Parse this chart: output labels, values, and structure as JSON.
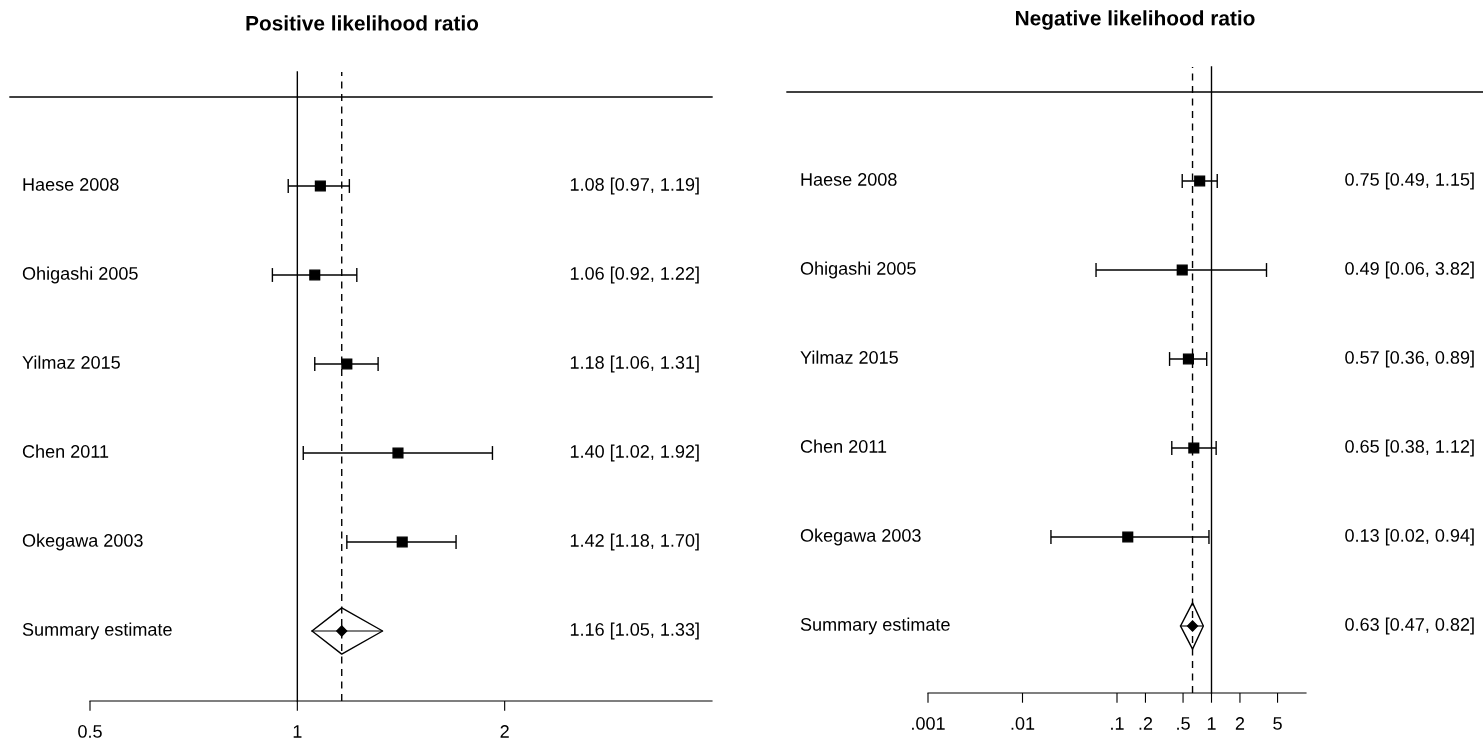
{
  "chart_data": [
    {
      "type": "scatter",
      "orientation": "horizontal",
      "title": "Positive likelihood ratio",
      "log": "x",
      "xlim": [
        0.5,
        4
      ],
      "xticks": [
        {
          "value": 0.5,
          "label": "0.5"
        },
        1,
        2
      ],
      "grid": false,
      "categories": [
        "Haese 2008",
        "Ohigashi 2005",
        "Yilmaz 2015",
        "Chen 2011",
        "Okegawa 2003",
        "Summary estimate"
      ],
      "series": [
        {
          "type": "scatter",
          "marker": "square",
          "color": "#000000",
          "values": [
            1.08,
            1.06,
            1.18,
            1.4,
            1.42,
            null
          ],
          "errors": [
            [
              0.97,
              1.19
            ],
            [
              0.92,
              1.22
            ],
            [
              1.06,
              1.31
            ],
            [
              1.02,
              1.92
            ],
            [
              1.18,
              1.7
            ],
            null
          ]
        },
        {
          "type": "scatter",
          "marker": "diamond",
          "color": "#000000",
          "values": [
            null,
            null,
            null,
            null,
            null,
            1.16
          ],
          "errors": [
            null,
            null,
            null,
            null,
            null,
            [
              1.05,
              1.33
            ]
          ]
        }
      ],
      "value_labels": [
        "1.08 [0.97, 1.19]",
        "1.06 [0.92, 1.22]",
        "1.18 [1.06, 1.31]",
        "1.40 [1.02, 1.92]",
        "1.42 [1.18, 1.70]",
        "1.16 [1.05, 1.33]"
      ],
      "ref_lines": [
        {
          "axis": "x",
          "value": 1,
          "line_style": "solid",
          "color": "#000000"
        },
        {
          "axis": "x",
          "value": 1.16,
          "line_style": "dashed",
          "color": "#000000"
        }
      ]
    },
    {
      "type": "scatter",
      "orientation": "horizontal",
      "title": "Negative likelihood ratio",
      "log": "x",
      "xlim": [
        0.001,
        10
      ],
      "xticks": [
        {
          "value": 0.001,
          "label": ".001"
        },
        {
          "value": 0.01,
          "label": ".01"
        },
        {
          "value": 0.1,
          "label": ".1"
        },
        {
          "value": 0.2,
          "label": ".2"
        },
        {
          "value": 0.5,
          "label": ".5"
        },
        1,
        2,
        5
      ],
      "grid": false,
      "categories": [
        "Haese 2008",
        "Ohigashi 2005",
        "Yilmaz 2015",
        "Chen 2011",
        "Okegawa 2003",
        "Summary estimate"
      ],
      "series": [
        {
          "type": "scatter",
          "marker": "square",
          "color": "#000000",
          "values": [
            0.75,
            0.49,
            0.57,
            0.65,
            0.13,
            null
          ],
          "errors": [
            [
              0.49,
              1.15
            ],
            [
              0.06,
              3.82
            ],
            [
              0.36,
              0.89
            ],
            [
              0.38,
              1.12
            ],
            [
              0.02,
              0.94
            ],
            null
          ]
        },
        {
          "type": "scatter",
          "marker": "diamond",
          "color": "#000000",
          "values": [
            null,
            null,
            null,
            null,
            null,
            0.63
          ],
          "errors": [
            null,
            null,
            null,
            null,
            null,
            [
              0.47,
              0.82
            ]
          ]
        }
      ],
      "value_labels": [
        "0.75 [0.49, 1.15]",
        "0.49 [0.06, 3.82]",
        "0.57 [0.36, 0.89]",
        "0.65 [0.38, 1.12]",
        "0.13 [0.02, 0.94]",
        "0.63 [0.47, 0.82]"
      ],
      "ref_lines": [
        {
          "axis": "x",
          "value": 1,
          "line_style": "solid",
          "color": "#000000"
        },
        {
          "axis": "x",
          "value": 0.63,
          "line_style": "dashed",
          "color": "#000000"
        }
      ]
    }
  ]
}
